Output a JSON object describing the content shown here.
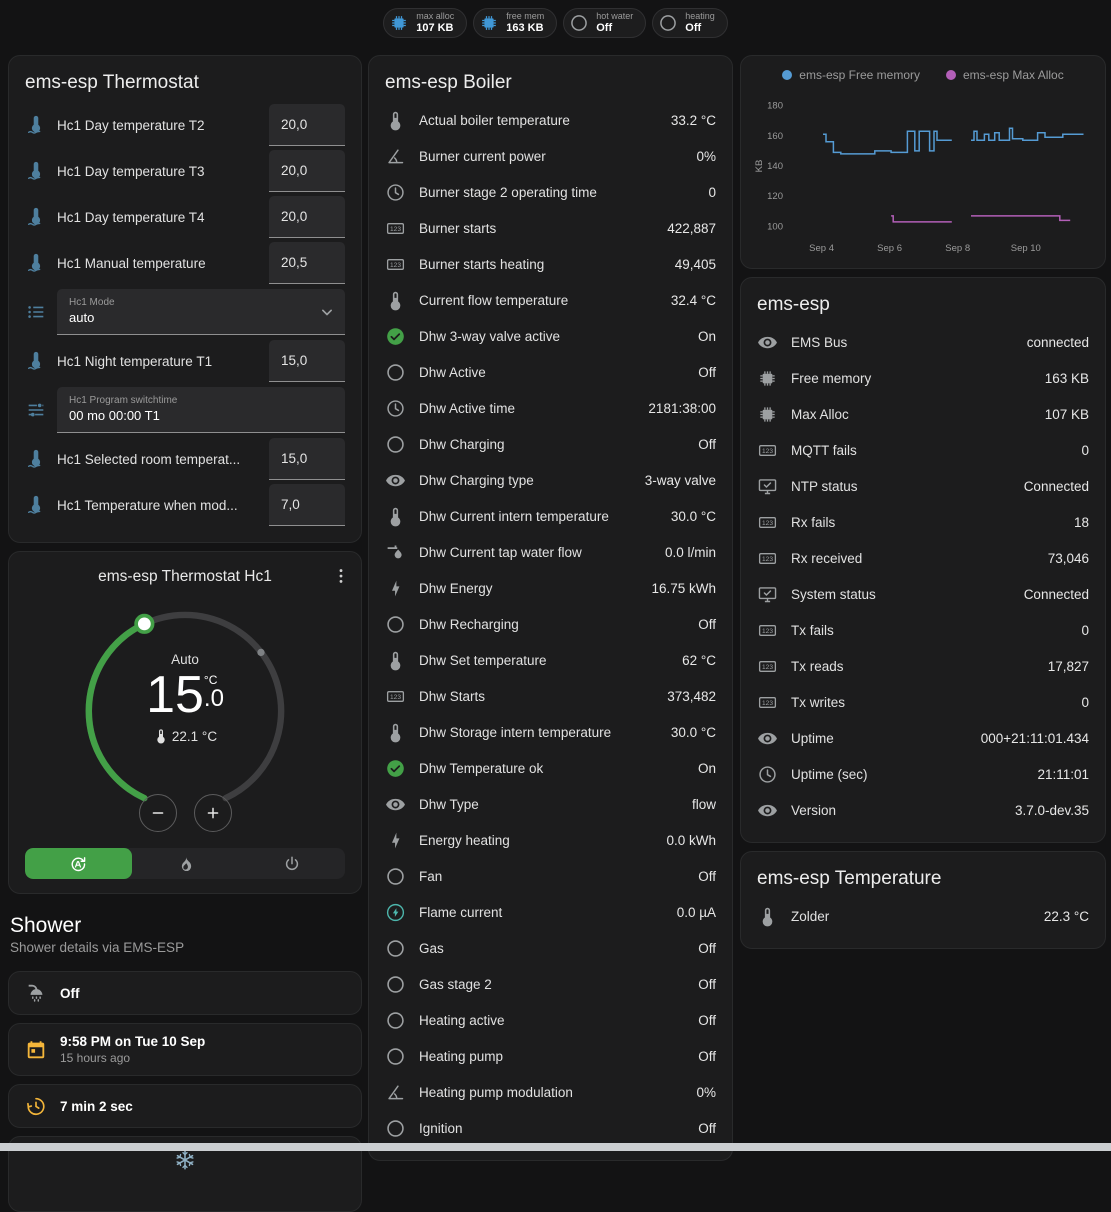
{
  "theme": {
    "accent_green": "#43a047",
    "row_icon_blue": "#4e7f9e",
    "badge_icon_blue": "#4098d7",
    "amber": "#f4b63a",
    "teal": "#4db6ac"
  },
  "badges": [
    {
      "icon": "chip",
      "icon_color": "#4098d7",
      "label": "max alloc",
      "value": "107 KB"
    },
    {
      "icon": "chip",
      "icon_color": "#4098d7",
      "label": "free mem",
      "value": "163 KB"
    },
    {
      "icon": "circle",
      "label": "hot water",
      "value": "Off"
    },
    {
      "icon": "circle",
      "label": "heating",
      "value": "Off"
    }
  ],
  "thermostat_card": {
    "title": "ems-esp Thermostat",
    "rows_top": [
      {
        "icon": "thermometer-water",
        "label": "Hc1 Day temperature T2",
        "value": "20,0"
      },
      {
        "icon": "thermometer-water",
        "label": "Hc1 Day temperature T3",
        "value": "20,0"
      },
      {
        "icon": "thermometer-water",
        "label": "Hc1 Day temperature T4",
        "value": "20,0"
      },
      {
        "icon": "thermometer-water",
        "label": "Hc1 Manual temperature",
        "value": "20,5"
      }
    ],
    "mode_field": {
      "label": "Hc1 Mode",
      "value": "auto"
    },
    "rows_mid": [
      {
        "icon": "thermometer-water",
        "label": "Hc1 Night temperature T1",
        "value": "15,0"
      }
    ],
    "switchtime_field": {
      "label": "Hc1 Program switchtime",
      "value": "00 mo 00:00 T1"
    },
    "rows_bottom": [
      {
        "icon": "thermometer-water",
        "label": "Hc1 Selected room temperat...",
        "value": "15,0"
      },
      {
        "icon": "thermometer-water",
        "label": "Hc1 Temperature when mod...",
        "value": "7,0"
      }
    ]
  },
  "hc1_card": {
    "title": "ems-esp Thermostat Hc1",
    "mode_label": "Auto",
    "temp_int": "15",
    "temp_dec": ".0",
    "temp_unit": "°C",
    "current_temp": "22.1 °C"
  },
  "shower": {
    "title": "Shower",
    "subtitle": "Shower details via EMS-ESP",
    "rows": [
      {
        "icon": "shower",
        "label": "Off"
      },
      {
        "icon": "calendar",
        "icon_color": "#f4b63a",
        "label": "9:58 PM on Tue 10 Sep",
        "sub": "15 hours ago"
      },
      {
        "icon": "timer",
        "icon_color": "#f4b63a",
        "label": "7 min 2 sec"
      }
    ]
  },
  "boiler_card": {
    "title": "ems-esp Boiler",
    "rows": [
      {
        "icon": "thermometer",
        "label": "Actual boiler temperature",
        "value": "33.2 °C"
      },
      {
        "icon": "angle",
        "label": "Burner current power",
        "value": "0%"
      },
      {
        "icon": "clock",
        "label": "Burner stage 2 operating time",
        "value": "0"
      },
      {
        "icon": "counter",
        "label": "Burner starts",
        "value": "422,887"
      },
      {
        "icon": "counter",
        "label": "Burner starts heating",
        "value": "49,405"
      },
      {
        "icon": "thermometer",
        "label": "Current flow temperature",
        "value": "32.4 °C"
      },
      {
        "icon": "check-circle",
        "icon_color": "#43a047",
        "label": "Dhw 3-way valve active",
        "value": "On"
      },
      {
        "icon": "circle",
        "label": "Dhw Active",
        "value": "Off"
      },
      {
        "icon": "clock",
        "label": "Dhw Active time",
        "value": "2181:38:00"
      },
      {
        "icon": "circle",
        "label": "Dhw Charging",
        "value": "Off"
      },
      {
        "icon": "eye",
        "label": "Dhw Charging type",
        "value": "3-way valve"
      },
      {
        "icon": "thermometer",
        "label": "Dhw Current intern temperature",
        "value": "30.0 °C"
      },
      {
        "icon": "water-pump",
        "label": "Dhw Current tap water flow",
        "value": "0.0 l/min"
      },
      {
        "icon": "flash",
        "label": "Dhw Energy",
        "value": "16.75 kWh"
      },
      {
        "icon": "circle",
        "label": "Dhw Recharging",
        "value": "Off"
      },
      {
        "icon": "thermometer",
        "label": "Dhw Set temperature",
        "value": "62 °C"
      },
      {
        "icon": "counter",
        "label": "Dhw Starts",
        "value": "373,482"
      },
      {
        "icon": "thermometer",
        "label": "Dhw Storage intern temperature",
        "value": "30.0 °C"
      },
      {
        "icon": "check-circle",
        "icon_color": "#43a047",
        "label": "Dhw Temperature ok",
        "value": "On"
      },
      {
        "icon": "eye",
        "label": "Dhw Type",
        "value": "flow"
      },
      {
        "icon": "flash",
        "label": "Energy heating",
        "value": "0.0 kWh"
      },
      {
        "icon": "circle",
        "label": "Fan",
        "value": "Off"
      },
      {
        "icon": "flash-circle",
        "icon_color": "#4db6ac",
        "label": "Flame current",
        "value": "0.0 µA"
      },
      {
        "icon": "circle",
        "label": "Gas",
        "value": "Off"
      },
      {
        "icon": "circle",
        "label": "Gas stage 2",
        "value": "Off"
      },
      {
        "icon": "circle",
        "label": "Heating active",
        "value": "Off"
      },
      {
        "icon": "circle",
        "label": "Heating pump",
        "value": "Off"
      },
      {
        "icon": "angle",
        "label": "Heating pump modulation",
        "value": "0%"
      },
      {
        "icon": "circle",
        "label": "Ignition",
        "value": "Off"
      }
    ]
  },
  "emsesp_card": {
    "title": "ems-esp",
    "rows": [
      {
        "icon": "eye",
        "label": "EMS Bus",
        "value": "connected"
      },
      {
        "icon": "chip",
        "label": "Free memory",
        "value": "163 KB"
      },
      {
        "icon": "chip",
        "label": "Max Alloc",
        "value": "107 KB"
      },
      {
        "icon": "counter",
        "label": "MQTT fails",
        "value": "0"
      },
      {
        "icon": "monitor",
        "label": "NTP status",
        "value": "Connected"
      },
      {
        "icon": "counter",
        "label": "Rx fails",
        "value": "18"
      },
      {
        "icon": "counter",
        "label": "Rx received",
        "value": "73,046"
      },
      {
        "icon": "monitor",
        "label": "System status",
        "value": "Connected"
      },
      {
        "icon": "counter",
        "label": "Tx fails",
        "value": "0"
      },
      {
        "icon": "counter",
        "label": "Tx reads",
        "value": "17,827"
      },
      {
        "icon": "counter",
        "label": "Tx writes",
        "value": "0"
      },
      {
        "icon": "eye",
        "label": "Uptime",
        "value": "000+21:11:01.434"
      },
      {
        "icon": "clock",
        "label": "Uptime (sec)",
        "value": "21:11:01"
      },
      {
        "icon": "eye",
        "label": "Version",
        "value": "3.7.0-dev.35"
      }
    ]
  },
  "temperature_card": {
    "title": "ems-esp Temperature",
    "rows": [
      {
        "icon": "thermometer",
        "label": "Zolder",
        "value": "22.3 °C"
      }
    ]
  },
  "chart_data": {
    "type": "line",
    "ylabel": "KB",
    "ylim": [
      95,
      185
    ],
    "yticks": [
      100,
      120,
      140,
      160,
      180
    ],
    "xticks": [
      {
        "f": 0.11,
        "label": "Sep 4"
      },
      {
        "f": 0.34,
        "label": "Sep 6"
      },
      {
        "f": 0.57,
        "label": "Sep 8"
      },
      {
        "f": 0.8,
        "label": "Sep 10"
      }
    ],
    "legend_position": "top",
    "grid": false,
    "series": [
      {
        "name": "ems-esp Free memory",
        "color": "#559bd4",
        "segments": [
          [
            [
              0.115,
              161
            ],
            [
              0.125,
              161
            ],
            [
              0.125,
              156
            ],
            [
              0.15,
              156
            ],
            [
              0.15,
              149
            ],
            [
              0.175,
              149
            ],
            [
              0.175,
              148
            ],
            [
              0.29,
              148
            ],
            [
              0.29,
              150
            ],
            [
              0.345,
              150
            ],
            [
              0.345,
              149
            ],
            [
              0.4,
              149
            ],
            [
              0.4,
              163
            ],
            [
              0.425,
              163
            ],
            [
              0.425,
              150
            ],
            [
              0.44,
              150
            ],
            [
              0.44,
              163
            ],
            [
              0.475,
              163
            ],
            [
              0.475,
              150
            ],
            [
              0.49,
              150
            ],
            [
              0.49,
              163
            ],
            [
              0.5,
              163
            ],
            [
              0.5,
              157
            ],
            [
              0.55,
              157
            ]
          ],
          [
            [
              0.615,
              157
            ],
            [
              0.625,
              157
            ],
            [
              0.625,
              163
            ],
            [
              0.635,
              163
            ],
            [
              0.635,
              157
            ],
            [
              0.66,
              157
            ],
            [
              0.66,
              161
            ],
            [
              0.675,
              161
            ],
            [
              0.675,
              157
            ],
            [
              0.695,
              157
            ],
            [
              0.695,
              162
            ],
            [
              0.71,
              162
            ],
            [
              0.71,
              157
            ],
            [
              0.745,
              157
            ],
            [
              0.745,
              165
            ],
            [
              0.755,
              165
            ],
            [
              0.755,
              158
            ],
            [
              0.79,
              158
            ],
            [
              0.79,
              157
            ],
            [
              0.84,
              157
            ],
            [
              0.84,
              162
            ],
            [
              0.865,
              162
            ],
            [
              0.865,
              159
            ],
            [
              0.925,
              159
            ],
            [
              0.925,
              161
            ],
            [
              0.995,
              161
            ]
          ]
        ]
      },
      {
        "name": "ems-esp Max Alloc",
        "color": "#b35fb8",
        "segments": [
          [
            [
              0.345,
              107
            ],
            [
              0.352,
              107
            ],
            [
              0.352,
              103
            ],
            [
              0.55,
              103
            ]
          ],
          [
            [
              0.615,
              107
            ],
            [
              0.915,
              107
            ],
            [
              0.915,
              104
            ],
            [
              0.95,
              104
            ]
          ]
        ]
      }
    ]
  }
}
